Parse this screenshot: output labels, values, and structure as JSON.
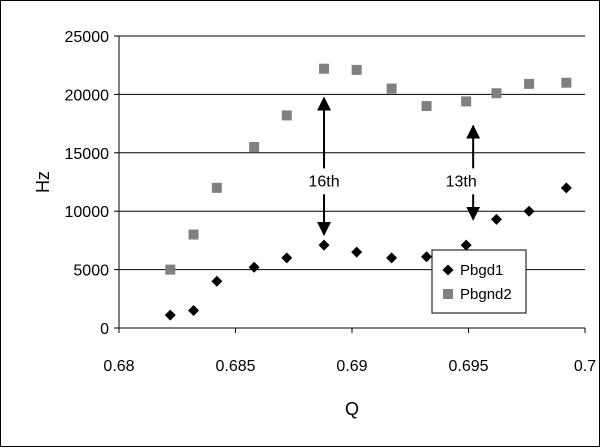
{
  "chart_data": {
    "type": "scatter",
    "title": "",
    "xlabel": "Q",
    "ylabel": "Hz",
    "xlim": [
      0.68,
      0.7
    ],
    "ylim": [
      0,
      25000
    ],
    "x_ticks": [
      "0.68",
      "0.685",
      "0.69",
      "0.695",
      "0.7"
    ],
    "y_ticks": [
      "0",
      "5000",
      "10000",
      "15000",
      "20000",
      "25000"
    ],
    "grid": "horizontal",
    "legend_position": "bottom-right",
    "series": [
      {
        "name": "Pbgd1",
        "marker": "diamond",
        "color": "#000000",
        "points": [
          [
            0.6822,
            1100
          ],
          [
            0.6832,
            1500
          ],
          [
            0.6842,
            4000
          ],
          [
            0.6858,
            5200
          ],
          [
            0.6872,
            6000
          ],
          [
            0.6888,
            7100
          ],
          [
            0.6902,
            6500
          ],
          [
            0.6917,
            6000
          ],
          [
            0.6932,
            6100
          ],
          [
            0.6949,
            7100
          ],
          [
            0.6962,
            9300
          ],
          [
            0.6976,
            10000
          ],
          [
            0.6992,
            12000
          ]
        ]
      },
      {
        "name": "Pbgnd2",
        "marker": "square",
        "color": "#808080",
        "points": [
          [
            0.6822,
            5000
          ],
          [
            0.6832,
            8000
          ],
          [
            0.6842,
            12000
          ],
          [
            0.6858,
            15500
          ],
          [
            0.6872,
            18200
          ],
          [
            0.6888,
            22200
          ],
          [
            0.6902,
            22100
          ],
          [
            0.6917,
            20500
          ],
          [
            0.6932,
            19000
          ],
          [
            0.6949,
            19400
          ],
          [
            0.6962,
            20100
          ],
          [
            0.6976,
            20900
          ],
          [
            0.6992,
            21000
          ]
        ]
      }
    ],
    "annotations": [
      {
        "text": "16th",
        "x": 0.6888,
        "y": 13500
      },
      {
        "text": "13th",
        "x": 0.6952,
        "y": 13500
      }
    ]
  }
}
